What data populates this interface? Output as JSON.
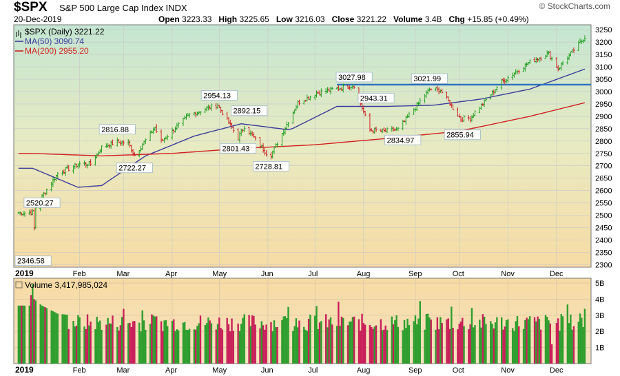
{
  "header": {
    "symbol": "$SPX",
    "name": "S&P 500 Large Cap Index",
    "exchange": "INDX",
    "date": "20-Dec-2019",
    "open_label": "Open",
    "open": "3223.33",
    "high_label": "High",
    "high": "3225.65",
    "low_label": "Low",
    "low": "3216.03",
    "close_label": "Close",
    "close": "3221.22",
    "volume_label": "Volume",
    "volume": "3.4B",
    "chg_label": "Chg",
    "chg": "+15.85 (+0.49%)",
    "brand": "© StockCharts.com"
  },
  "legend": {
    "price": "$SPX (Daily) 3221.22",
    "ma50": "MA(50) 3090.74",
    "ma200": "MA(200) 2955.20",
    "volume": "Volume 3,417,985,024"
  },
  "colors": {
    "up": "#22a022",
    "down": "#cc2222",
    "ma50": "#3a3a9a",
    "ma200": "#d02020",
    "resistance": "#2a6fc0",
    "vol_up": "#2e9e2e",
    "vol_down": "#c8205a"
  },
  "chart_data": [
    {
      "type": "line",
      "title": "$SPX (Daily) 3221.22",
      "ylim": [
        2290,
        3270
      ],
      "y_ticks": [
        2300,
        2350,
        2400,
        2450,
        2500,
        2550,
        2600,
        2650,
        2700,
        2750,
        2800,
        2850,
        2900,
        2950,
        3000,
        3050,
        3100,
        3150,
        3200,
        3250
      ],
      "x_axis": {
        "year_label": "2019",
        "month_labels": [
          "Feb",
          "Mar",
          "Apr",
          "May",
          "Jun",
          "Jul",
          "Aug",
          "Sep",
          "Oct",
          "Nov",
          "Dec"
        ]
      },
      "series": [
        {
          "name": "$SPX (Daily) 3221.22",
          "key_points": [
            [
              "2019-01-02",
              2510
            ],
            [
              "2019-01-03",
              2447
            ],
            [
              "2019-01-04",
              2531
            ],
            [
              "2019-01-08",
              2575
            ],
            [
              "2019-01-18",
              2670
            ],
            [
              "2019-02-01",
              2707
            ],
            [
              "2019-02-08",
              2708
            ],
            [
              "2019-02-15",
              2775
            ],
            [
              "2019-02-25",
              2796
            ],
            [
              "2019-03-04",
              2792
            ],
            [
              "2019-03-08",
              2743
            ],
            [
              "2019-03-21",
              2855
            ],
            [
              "2019-03-25",
              2798
            ],
            [
              "2019-04-12",
              2907
            ],
            [
              "2019-04-30",
              2946
            ],
            [
              "2019-05-13",
              2812
            ],
            [
              "2019-05-17",
              2860
            ],
            [
              "2019-05-31",
              2752
            ],
            [
              "2019-06-03",
              2744
            ],
            [
              "2019-06-20",
              2955
            ],
            [
              "2019-07-03",
              2996
            ],
            [
              "2019-07-26",
              3026
            ],
            [
              "2019-08-05",
              2844
            ],
            [
              "2019-08-14",
              2840
            ],
            [
              "2019-08-23",
              2847
            ],
            [
              "2019-09-12",
              3009
            ],
            [
              "2019-09-19",
              3006
            ],
            [
              "2019-10-02",
              2888
            ],
            [
              "2019-10-08",
              2893
            ],
            [
              "2019-10-28",
              3039
            ],
            [
              "2019-11-15",
              3120
            ],
            [
              "2019-11-27",
              3154
            ],
            [
              "2019-12-03",
              3093
            ],
            [
              "2019-12-13",
              3168
            ],
            [
              "2019-12-20",
              3221
            ]
          ]
        },
        {
          "name": "MA(50) 3090.74",
          "key_points": [
            [
              "2019-01-02",
              2690
            ],
            [
              "2019-01-31",
              2613
            ],
            [
              "2019-02-15",
              2620
            ],
            [
              "2019-03-15",
              2740
            ],
            [
              "2019-04-15",
              2820
            ],
            [
              "2019-05-15",
              2870
            ],
            [
              "2019-06-15",
              2845
            ],
            [
              "2019-07-15",
              2940
            ],
            [
              "2019-08-15",
              2940
            ],
            [
              "2019-09-15",
              2945
            ],
            [
              "2019-10-15",
              2970
            ],
            [
              "2019-11-15",
              3010
            ],
            [
              "2019-12-20",
              3091
            ]
          ]
        },
        {
          "name": "MA(200) 2955.20",
          "key_points": [
            [
              "2019-01-02",
              2750
            ],
            [
              "2019-02-15",
              2740
            ],
            [
              "2019-04-01",
              2750
            ],
            [
              "2019-05-15",
              2770
            ],
            [
              "2019-07-01",
              2785
            ],
            [
              "2019-08-15",
              2810
            ],
            [
              "2019-10-01",
              2840
            ],
            [
              "2019-11-15",
              2900
            ],
            [
              "2019-12-20",
              2955
            ]
          ]
        }
      ],
      "resistance_line": {
        "value": 3028,
        "start": "2019-07-15",
        "end": "2019-12-20"
      },
      "annotations": [
        {
          "label": "2520.27",
          "date": "2019-01-08",
          "value": 2520.27
        },
        {
          "label": "2346.58",
          "date": "2018-12-24",
          "value": 2346.58
        },
        {
          "label": "2816.88",
          "date": "2019-02-25",
          "value": 2816.88
        },
        {
          "label": "2722.27",
          "date": "2019-03-08",
          "value": 2722.27
        },
        {
          "label": "2954.13",
          "date": "2019-05-01",
          "value": 2954.13
        },
        {
          "label": "2892.15",
          "date": "2019-05-20",
          "value": 2892.15
        },
        {
          "label": "2801.43",
          "date": "2019-05-13",
          "value": 2801.43
        },
        {
          "label": "2728.81",
          "date": "2019-06-03",
          "value": 2728.81
        },
        {
          "label": "3027.98",
          "date": "2019-07-26",
          "value": 3027.98
        },
        {
          "label": "2943.31",
          "date": "2019-08-09",
          "value": 2943.31
        },
        {
          "label": "2834.97",
          "date": "2019-08-26",
          "value": 2834.97
        },
        {
          "label": "3021.99",
          "date": "2019-09-12",
          "value": 3021.99
        },
        {
          "label": "2855.94",
          "date": "2019-10-03",
          "value": 2855.94
        }
      ]
    },
    {
      "type": "bar",
      "title": "Volume 3,417,985,024",
      "ylim": [
        0,
        5.3
      ],
      "y_ticks": [
        1,
        2,
        3,
        4,
        5
      ],
      "y_tick_labels": [
        "1B",
        "2B",
        "3B",
        "4B",
        "5B"
      ],
      "x_axis": {
        "year_label": "2019",
        "month_labels": [
          "Feb",
          "Mar",
          "Apr",
          "May",
          "Jun",
          "Jul",
          "Aug",
          "Sep",
          "Oct",
          "Nov",
          "Dec"
        ]
      },
      "key_values_billions": [
        [
          "2018-12-31",
          3.6
        ],
        [
          "2019-01-02",
          4.9
        ],
        [
          "2019-01-03",
          4.0
        ],
        [
          "2019-01-08",
          3.6
        ],
        [
          "2019-01-18",
          3.1
        ],
        [
          "2019-02-15",
          2.8
        ],
        [
          "2019-03-15",
          3.4
        ],
        [
          "2019-05-13",
          3.9
        ],
        [
          "2019-05-31",
          3.3
        ],
        [
          "2019-06-21",
          3.8
        ],
        [
          "2019-08-05",
          3.4
        ],
        [
          "2019-08-14",
          3.2
        ],
        [
          "2019-09-20",
          3.3
        ],
        [
          "2019-11-27",
          1.2
        ],
        [
          "2019-12-20",
          3.4
        ]
      ]
    }
  ]
}
